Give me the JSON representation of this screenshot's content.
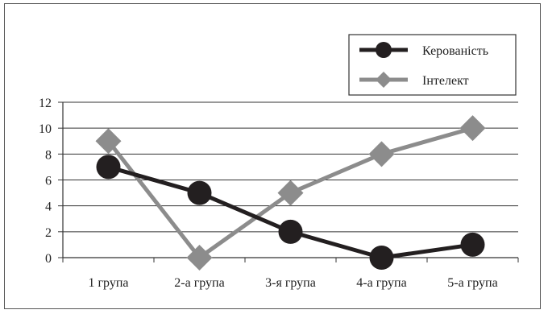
{
  "chart_data": {
    "type": "line",
    "title": "",
    "xlabel": "",
    "ylabel": "",
    "categories": [
      "1  група",
      "2-а група",
      "3-я група",
      "4-а група",
      "5-а група"
    ],
    "ylim": [
      0,
      12
    ],
    "yticks": [
      0,
      2,
      4,
      6,
      8,
      10,
      12
    ],
    "grid": true,
    "legend_position": "top-right",
    "series": [
      {
        "name": "Керованість",
        "values": [
          7,
          5,
          2,
          0,
          1
        ],
        "color": "#231f20",
        "marker": "circle"
      },
      {
        "name": "Інтелект",
        "values": [
          9,
          0,
          5,
          8,
          10
        ],
        "color": "#8c8c8c",
        "marker": "diamond"
      }
    ]
  }
}
